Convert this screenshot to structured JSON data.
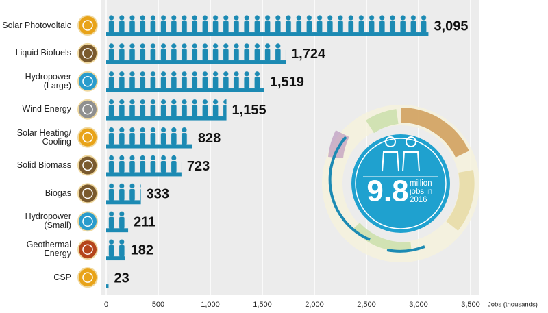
{
  "chart_data": {
    "type": "bar",
    "orientation": "horizontal",
    "categories": [
      "Solar Photovoltaic",
      "Liquid Biofuels",
      "Hydropower (Large)",
      "Wind Energy",
      "Solar Heating/ Cooling",
      "Solid Biomass",
      "Biogas",
      "Hydropower (Small)",
      "Geothermal Energy",
      "CSP"
    ],
    "values": [
      3095,
      1724,
      1519,
      1155,
      828,
      723,
      333,
      211,
      182,
      23
    ],
    "value_labels": [
      "3,095",
      "1,724",
      "1,519",
      "1,155",
      "828",
      "723",
      "333",
      "211",
      "182",
      "23"
    ],
    "color": "#1c8ab3",
    "icon_colors": [
      "#e8a319",
      "#7a5a2e",
      "#2a9ccc",
      "#8f8f8f",
      "#e8a319",
      "#7a5a2e",
      "#7a5a2e",
      "#2a9ccc",
      "#b5451b",
      "#e8a319"
    ],
    "xlim": [
      0,
      3500
    ],
    "xticks": [
      0,
      500,
      {
        "value": 1000,
        "label": "1,000"
      },
      {
        "value": 1500,
        "label": "1,500"
      },
      {
        "value": 2000,
        "label": "2,000"
      },
      {
        "value": 2500,
        "label": "2,500"
      },
      {
        "value": 3000,
        "label": "3,000"
      },
      {
        "value": 3500,
        "label": "3,500"
      }
    ],
    "xlabel": "Jobs (thousands)",
    "grid": true,
    "annotation": {
      "number": "9.8",
      "text": "million jobs in 2016"
    }
  }
}
